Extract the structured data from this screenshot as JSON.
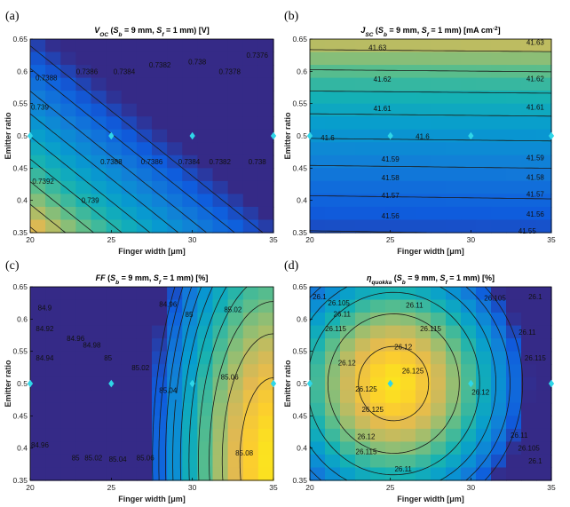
{
  "colors": {
    "marker": "#2fd6e8",
    "contour": "#1a1a1a",
    "frame": "#000000"
  },
  "chart_data": [
    {
      "panel": "(a)",
      "type": "heatmap",
      "title_parts": [
        "V",
        "OC",
        " (",
        "S",
        "b",
        " = 9 mm, ",
        "S",
        "f",
        " = 1 mm) [V]"
      ],
      "xlabel": "Finger width [μm]",
      "ylabel": "Emitter ratio",
      "xlim": [
        20,
        35
      ],
      "ylim": [
        0.35,
        0.65
      ],
      "xticks": [
        "20",
        "25",
        "30",
        "35"
      ],
      "yticks": [
        "0.35",
        "0.4",
        "0.45",
        "0.5",
        "0.55",
        "0.6",
        "0.65"
      ],
      "contour_levels": [
        0.7376,
        0.7378,
        0.738,
        0.7382,
        0.7384,
        0.7386,
        0.7388,
        0.739,
        0.7392
      ],
      "contour_labels": [
        {
          "text": "0.7388",
          "x": 21.0,
          "y": 0.59
        },
        {
          "text": "0.7386",
          "x": 23.5,
          "y": 0.6
        },
        {
          "text": "0.7384",
          "x": 25.8,
          "y": 0.6
        },
        {
          "text": "0.7382",
          "x": 28.0,
          "y": 0.61
        },
        {
          "text": "0.738",
          "x": 30.3,
          "y": 0.615
        },
        {
          "text": "0.7378",
          "x": 32.3,
          "y": 0.6
        },
        {
          "text": "0.7376",
          "x": 34.0,
          "y": 0.625
        },
        {
          "text": "0.739",
          "x": 20.6,
          "y": 0.545
        },
        {
          "text": "0.7392",
          "x": 20.8,
          "y": 0.43
        },
        {
          "text": "0.739",
          "x": 23.7,
          "y": 0.4
        },
        {
          "text": "0.7388",
          "x": 25.0,
          "y": 0.46
        },
        {
          "text": "0.7386",
          "x": 27.5,
          "y": 0.46
        },
        {
          "text": "0.7384",
          "x": 29.8,
          "y": 0.46
        },
        {
          "text": "0.7382",
          "x": 31.7,
          "y": 0.46
        },
        {
          "text": "0.738",
          "x": 34.0,
          "y": 0.46
        }
      ],
      "markers": [
        {
          "x": 20,
          "y": 0.5
        },
        {
          "x": 25,
          "y": 0.5
        },
        {
          "x": 30,
          "y": 0.5
        },
        {
          "x": 35,
          "y": 0.5
        }
      ]
    },
    {
      "panel": "(b)",
      "type": "heatmap",
      "title_parts": [
        "J",
        "SC",
        " (",
        "S",
        "b",
        " = 9 mm, ",
        "S",
        "f",
        " = 1 mm) [mA cm",
        "-2",
        "]"
      ],
      "xlabel": "Finger width [μm]",
      "ylabel": "Emitter ratio",
      "xlim": [
        20,
        35
      ],
      "ylim": [
        0.35,
        0.65
      ],
      "xticks": [
        "20",
        "25",
        "30",
        "35"
      ],
      "yticks": [
        "0.35",
        "0.4",
        "0.45",
        "0.5",
        "0.55",
        "0.6",
        "0.65"
      ],
      "contour_levels": [
        41.55,
        41.56,
        41.57,
        41.58,
        41.59,
        41.6,
        41.61,
        41.62,
        41.63
      ],
      "contour_labels": [
        {
          "text": "41.63",
          "x": 24.2,
          "y": 0.637
        },
        {
          "text": "41.63",
          "x": 34.0,
          "y": 0.645
        },
        {
          "text": "41.62",
          "x": 24.5,
          "y": 0.588
        },
        {
          "text": "41.62",
          "x": 34.0,
          "y": 0.589
        },
        {
          "text": "41.61",
          "x": 24.5,
          "y": 0.543
        },
        {
          "text": "41.61",
          "x": 34.0,
          "y": 0.545
        },
        {
          "text": "41.6",
          "x": 21.1,
          "y": 0.497
        },
        {
          "text": "41.6",
          "x": 27.0,
          "y": 0.499
        },
        {
          "text": "41.59",
          "x": 25.0,
          "y": 0.464
        },
        {
          "text": "41.59",
          "x": 34.0,
          "y": 0.466
        },
        {
          "text": "41.58",
          "x": 25.0,
          "y": 0.435
        },
        {
          "text": "41.58",
          "x": 34.0,
          "y": 0.436
        },
        {
          "text": "41.57",
          "x": 25.0,
          "y": 0.408
        },
        {
          "text": "41.57",
          "x": 34.0,
          "y": 0.41
        },
        {
          "text": "41.56",
          "x": 25.0,
          "y": 0.376
        },
        {
          "text": "41.56",
          "x": 34.0,
          "y": 0.379
        },
        {
          "text": "41.55",
          "x": 33.5,
          "y": 0.353
        }
      ],
      "markers": [
        {
          "x": 20,
          "y": 0.5
        },
        {
          "x": 25,
          "y": 0.5
        },
        {
          "x": 30,
          "y": 0.5
        },
        {
          "x": 35,
          "y": 0.5
        }
      ]
    },
    {
      "panel": "(c)",
      "type": "heatmap",
      "title_parts": [
        "FF",
        "",
        " (",
        "S",
        "b",
        " = 9 mm, ",
        "S",
        "f",
        " = 1 mm) [%]"
      ],
      "xlabel": "Finger width [μm]",
      "ylabel": "Emitter ratio",
      "xlim": [
        20,
        35
      ],
      "ylim": [
        0.35,
        0.65
      ],
      "xticks": [
        "20",
        "25",
        "30",
        "35"
      ],
      "yticks": [
        "0.35",
        "0.4",
        "0.45",
        "0.5",
        "0.55",
        "0.6",
        "0.65"
      ],
      "contour_levels": [
        84.9,
        84.92,
        84.94,
        84.96,
        84.98,
        85,
        85.02,
        85.04,
        85.06,
        85.08
      ],
      "contour_labels": [
        {
          "text": "84.9",
          "x": 20.9,
          "y": 0.618
        },
        {
          "text": "84.92",
          "x": 20.9,
          "y": 0.585
        },
        {
          "text": "84.94",
          "x": 20.9,
          "y": 0.54
        },
        {
          "text": "84.96",
          "x": 22.8,
          "y": 0.57
        },
        {
          "text": "84.98",
          "x": 23.8,
          "y": 0.56
        },
        {
          "text": "84.96",
          "x": 28.5,
          "y": 0.623
        },
        {
          "text": "85",
          "x": 24.8,
          "y": 0.54
        },
        {
          "text": "85",
          "x": 29.8,
          "y": 0.607
        },
        {
          "text": "85.02",
          "x": 26.8,
          "y": 0.525
        },
        {
          "text": "85.02",
          "x": 32.5,
          "y": 0.615
        },
        {
          "text": "85.04",
          "x": 28.5,
          "y": 0.49
        },
        {
          "text": "85.06",
          "x": 32.3,
          "y": 0.51
        },
        {
          "text": "84.96",
          "x": 20.6,
          "y": 0.405
        },
        {
          "text": "85",
          "x": 22.8,
          "y": 0.385
        },
        {
          "text": "85.02",
          "x": 23.9,
          "y": 0.385
        },
        {
          "text": "85.04",
          "x": 25.4,
          "y": 0.383
        },
        {
          "text": "85.06",
          "x": 27.1,
          "y": 0.385
        },
        {
          "text": "85.08",
          "x": 33.2,
          "y": 0.393
        }
      ],
      "markers": [
        {
          "x": 20,
          "y": 0.5
        },
        {
          "x": 25,
          "y": 0.5
        },
        {
          "x": 30,
          "y": 0.5
        },
        {
          "x": 35,
          "y": 0.5
        }
      ]
    },
    {
      "panel": "(d)",
      "type": "heatmap",
      "title_parts": [
        "η",
        "quokka",
        " (",
        "S",
        "b",
        " = 9 mm, ",
        "S",
        "f",
        " = 1 mm) [%]"
      ],
      "xlabel": "Finger width [μm]",
      "ylabel": "Emitter ratio",
      "xlim": [
        20,
        35
      ],
      "ylim": [
        0.35,
        0.65
      ],
      "xticks": [
        "20",
        "25",
        "30",
        "35"
      ],
      "yticks": [
        "0.35",
        "0.4",
        "0.45",
        "0.5",
        "0.55",
        "0.6",
        "0.65"
      ],
      "contour_levels": [
        26.1,
        26.105,
        26.11,
        26.115,
        26.12,
        26.125
      ],
      "contour_labels": [
        {
          "text": "26.1",
          "x": 20.6,
          "y": 0.635
        },
        {
          "text": "26.105",
          "x": 21.8,
          "y": 0.625
        },
        {
          "text": "26.11",
          "x": 22.0,
          "y": 0.608
        },
        {
          "text": "26.115",
          "x": 21.6,
          "y": 0.585
        },
        {
          "text": "26.11",
          "x": 26.5,
          "y": 0.622
        },
        {
          "text": "26.105",
          "x": 31.5,
          "y": 0.633
        },
        {
          "text": "26.1",
          "x": 34.0,
          "y": 0.635
        },
        {
          "text": "26.115",
          "x": 27.5,
          "y": 0.585
        },
        {
          "text": "26.12",
          "x": 25.8,
          "y": 0.557
        },
        {
          "text": "26.12",
          "x": 22.3,
          "y": 0.532
        },
        {
          "text": "26.125",
          "x": 23.5,
          "y": 0.492
        },
        {
          "text": "26.125",
          "x": 26.4,
          "y": 0.52
        },
        {
          "text": "26.125",
          "x": 23.9,
          "y": 0.46
        },
        {
          "text": "26.11",
          "x": 33.5,
          "y": 0.58
        },
        {
          "text": "26.115",
          "x": 34.0,
          "y": 0.54
        },
        {
          "text": "26.12",
          "x": 30.6,
          "y": 0.487
        },
        {
          "text": "26.12",
          "x": 23.5,
          "y": 0.418
        },
        {
          "text": "26.115",
          "x": 23.5,
          "y": 0.395
        },
        {
          "text": "26.11",
          "x": 25.8,
          "y": 0.368
        },
        {
          "text": "26.11",
          "x": 33.0,
          "y": 0.42
        },
        {
          "text": "26.105",
          "x": 33.6,
          "y": 0.4
        },
        {
          "text": "26.1",
          "x": 34.0,
          "y": 0.38
        }
      ],
      "markers": [
        {
          "x": 20,
          "y": 0.5
        },
        {
          "x": 25,
          "y": 0.5
        },
        {
          "x": 30,
          "y": 0.5
        },
        {
          "x": 35,
          "y": 0.5
        }
      ]
    }
  ]
}
